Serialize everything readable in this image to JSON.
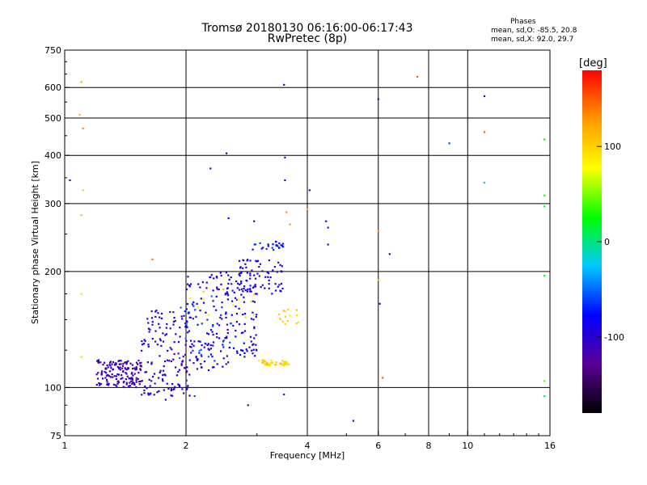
{
  "title": {
    "line1": "Tromsø 20180130 06:16:00-06:17:43",
    "line2": "RwPretec (8p)"
  },
  "phase_box": {
    "heading": "Phases",
    "line1": "mean, sd,O: -85.5, 20.8",
    "line2": "mean, sd,X:  92.0, 29.7"
  },
  "colors": {
    "axis": "#000000",
    "grid": "#000000",
    "background": "#ffffff"
  },
  "chart_data": {
    "type": "scatter",
    "title": "Tromsø 20180130 06:16:00-06:17:43",
    "subtitle": "RwPretec (8p)",
    "xlabel": "Frequency [MHz]",
    "ylabel": "Stationary phase Virtual Height [km]",
    "x_scale": "log",
    "y_scale": "log",
    "xlim": [
      1,
      16
    ],
    "ylim": [
      75,
      750
    ],
    "xticks": [
      1,
      2,
      4,
      6,
      8,
      10,
      16
    ],
    "xticklabels": [
      "1",
      "2",
      "4",
      "6",
      "8",
      "10",
      "16"
    ],
    "x_gridlines": [
      2,
      4,
      6,
      8,
      10
    ],
    "yticks": [
      75,
      100,
      200,
      300,
      400,
      500,
      600,
      750
    ],
    "yticklabels": [
      "75",
      "100",
      "200",
      "300",
      "400",
      "500",
      "600",
      "750"
    ],
    "y_gridlines": [
      100,
      200,
      300,
      400,
      500,
      600
    ],
    "grid": true,
    "colorbar": {
      "title": "[deg]",
      "range": [
        -180,
        180
      ],
      "ticks": [
        100,
        0,
        -100
      ],
      "ticklabels": [
        "100",
        "0",
        "-100"
      ],
      "colormap": [
        "#000000",
        "#5a0096",
        "#0000ff",
        "#00c8ff",
        "#00ff00",
        "#ffff00",
        "#ff9900",
        "#ff0000"
      ]
    },
    "point_groups": [
      {
        "x": [
          1.2,
          1.55
        ],
        "y": [
          100,
          118
        ],
        "phase": -110,
        "count": 160
      },
      {
        "x": [
          1.55,
          2.05
        ],
        "y": [
          95,
          160
        ],
        "phase": -100,
        "count": 150
      },
      {
        "x": [
          2.0,
          2.55
        ],
        "y": [
          110,
          200
        ],
        "phase": -95,
        "count": 110
      },
      {
        "x": [
          2.5,
          3.0
        ],
        "y": [
          120,
          200
        ],
        "phase": -90,
        "count": 100
      },
      {
        "x": [
          2.7,
          3.5
        ],
        "y": [
          175,
          215
        ],
        "phase": -95,
        "count": 60
      },
      {
        "x": [
          2.9,
          3.5
        ],
        "y": [
          225,
          240
        ],
        "phase": -70,
        "count": 25
      },
      {
        "x": [
          3.0,
          3.6
        ],
        "y": [
          114,
          118
        ],
        "phase": 100,
        "count": 45
      },
      {
        "x": [
          3.4,
          3.8
        ],
        "y": [
          145,
          160
        ],
        "phase": 100,
        "count": 15
      },
      {
        "x": [
          1.9,
          2.6
        ],
        "y": [
          115,
          175
        ],
        "phase": -60,
        "count": 30
      },
      {
        "x": [
          2.0,
          3.0
        ],
        "y": [
          150,
          180
        ],
        "phase": 95,
        "count": 12
      }
    ],
    "isolated_points": [
      {
        "x": 1.1,
        "y": 620,
        "phase": 120
      },
      {
        "x": 1.09,
        "y": 510,
        "phase": 110
      },
      {
        "x": 1.11,
        "y": 470,
        "phase": 130
      },
      {
        "x": 1.11,
        "y": 325,
        "phase": 100
      },
      {
        "x": 1.1,
        "y": 280,
        "phase": 110
      },
      {
        "x": 1.03,
        "y": 345,
        "phase": -110
      },
      {
        "x": 1.1,
        "y": 175,
        "phase": 100
      },
      {
        "x": 1.1,
        "y": 120,
        "phase": 100
      },
      {
        "x": 1.65,
        "y": 215,
        "phase": 140
      },
      {
        "x": 2.3,
        "y": 370,
        "phase": -110
      },
      {
        "x": 2.52,
        "y": 405,
        "phase": -140
      },
      {
        "x": 2.55,
        "y": 275,
        "phase": -90
      },
      {
        "x": 2.95,
        "y": 270,
        "phase": -110
      },
      {
        "x": 2.85,
        "y": 90,
        "phase": -120
      },
      {
        "x": 3.5,
        "y": 610,
        "phase": -90
      },
      {
        "x": 3.52,
        "y": 395,
        "phase": -120
      },
      {
        "x": 3.52,
        "y": 345,
        "phase": -100
      },
      {
        "x": 3.55,
        "y": 285,
        "phase": 130
      },
      {
        "x": 3.62,
        "y": 265,
        "phase": 130
      },
      {
        "x": 4.05,
        "y": 325,
        "phase": -110
      },
      {
        "x": 4.0,
        "y": 290,
        "phase": 120
      },
      {
        "x": 4.45,
        "y": 270,
        "phase": -100
      },
      {
        "x": 4.5,
        "y": 235,
        "phase": -90
      },
      {
        "x": 4.5,
        "y": 260,
        "phase": -110
      },
      {
        "x": 5.2,
        "y": 82,
        "phase": -100
      },
      {
        "x": 6.0,
        "y": 560,
        "phase": -110
      },
      {
        "x": 6.0,
        "y": 255,
        "phase": 130
      },
      {
        "x": 6.0,
        "y": 190,
        "phase": 110
      },
      {
        "x": 6.05,
        "y": 165,
        "phase": -110
      },
      {
        "x": 6.15,
        "y": 106,
        "phase": 150
      },
      {
        "x": 6.4,
        "y": 222,
        "phase": -110
      },
      {
        "x": 7.5,
        "y": 640,
        "phase": 150
      },
      {
        "x": 9.0,
        "y": 430,
        "phase": -60
      },
      {
        "x": 11.0,
        "y": 570,
        "phase": -110
      },
      {
        "x": 11.0,
        "y": 460,
        "phase": 150
      },
      {
        "x": 11.0,
        "y": 340,
        "phase": -20
      },
      {
        "x": 15.5,
        "y": 440,
        "phase": 20
      },
      {
        "x": 15.5,
        "y": 315,
        "phase": 30
      },
      {
        "x": 15.5,
        "y": 295,
        "phase": 20
      },
      {
        "x": 15.5,
        "y": 195,
        "phase": 20
      },
      {
        "x": 15.5,
        "y": 104,
        "phase": 40
      },
      {
        "x": 15.5,
        "y": 95,
        "phase": 10
      },
      {
        "x": 3.5,
        "y": 96,
        "phase": -110
      },
      {
        "x": 2.1,
        "y": 95,
        "phase": -60
      },
      {
        "x": 1.78,
        "y": 93,
        "phase": -110
      }
    ]
  }
}
